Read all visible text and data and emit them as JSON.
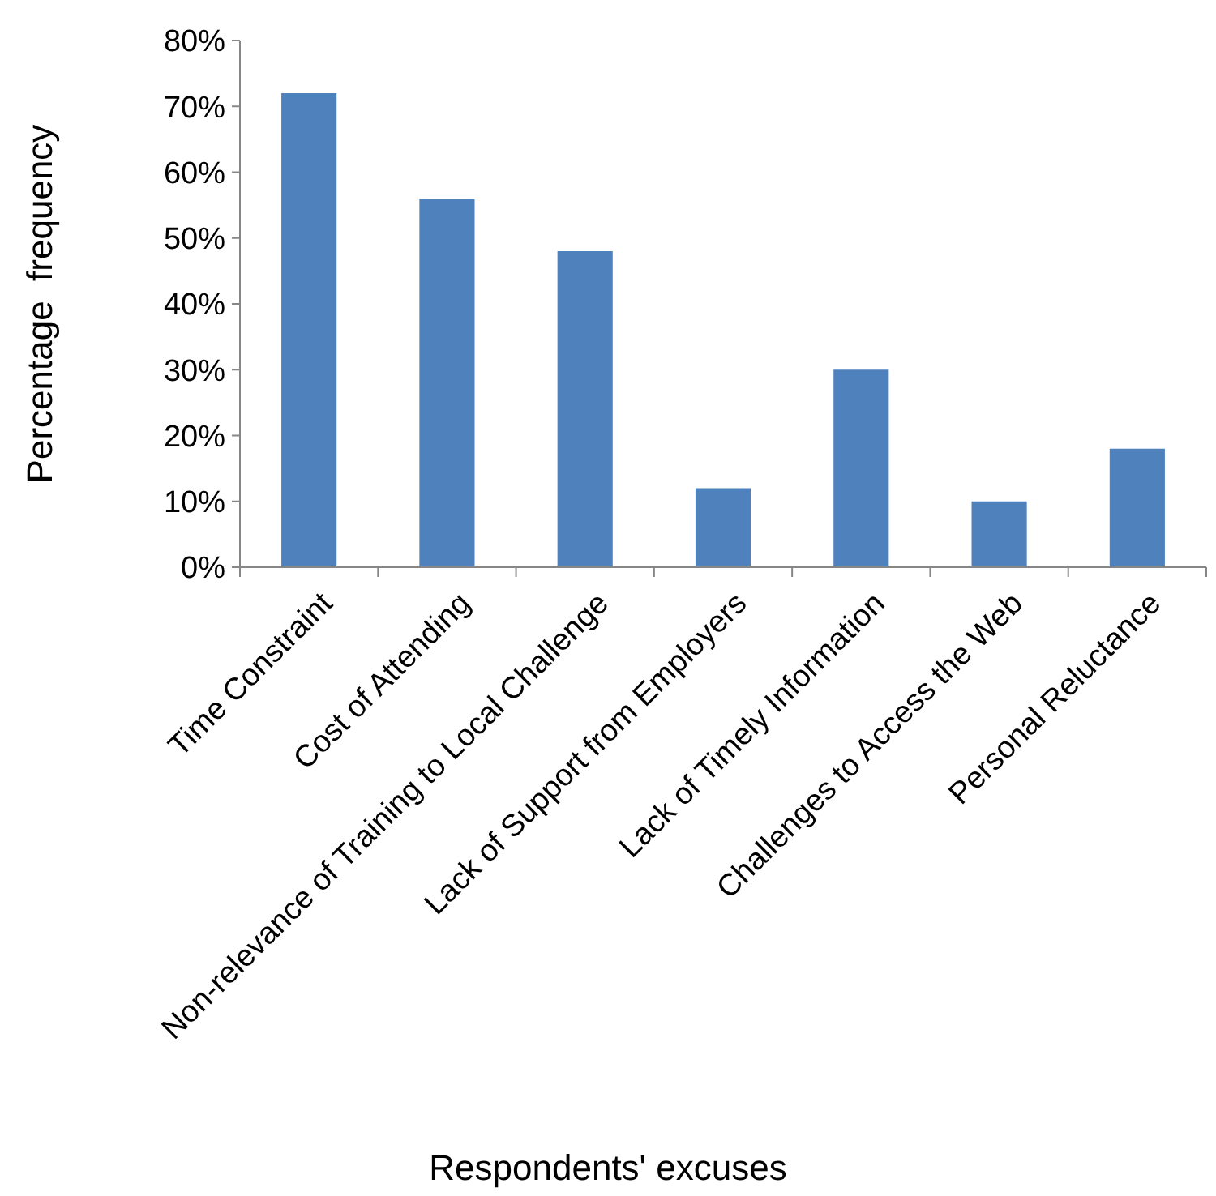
{
  "chart_data": {
    "type": "bar",
    "xlabel": "Respondents' excuses",
    "ylabel": "Percentage  frequency",
    "categories": [
      "Time Constraint",
      "Cost of Attending",
      "Non-relevance of Training to Local Challenge",
      "Lack of Support from Employers",
      "Lack of Timely Information",
      "Challenges to Access the Web",
      "Personal Reluctance"
    ],
    "values": [
      72,
      56,
      48,
      12,
      30,
      10,
      18
    ],
    "color": "#4f81bd",
    "ylim": [
      0,
      80
    ],
    "yticks": [
      {
        "value": 0,
        "label": "0%"
      },
      {
        "value": 10,
        "label": "10%"
      },
      {
        "value": 20,
        "label": "20%"
      },
      {
        "value": 30,
        "label": "30%"
      },
      {
        "value": 40,
        "label": "40%"
      },
      {
        "value": 50,
        "label": "50%"
      },
      {
        "value": 60,
        "label": "60%"
      },
      {
        "value": 70,
        "label": "70%"
      },
      {
        "value": 80,
        "label": "80%"
      }
    ],
    "grid": false
  }
}
